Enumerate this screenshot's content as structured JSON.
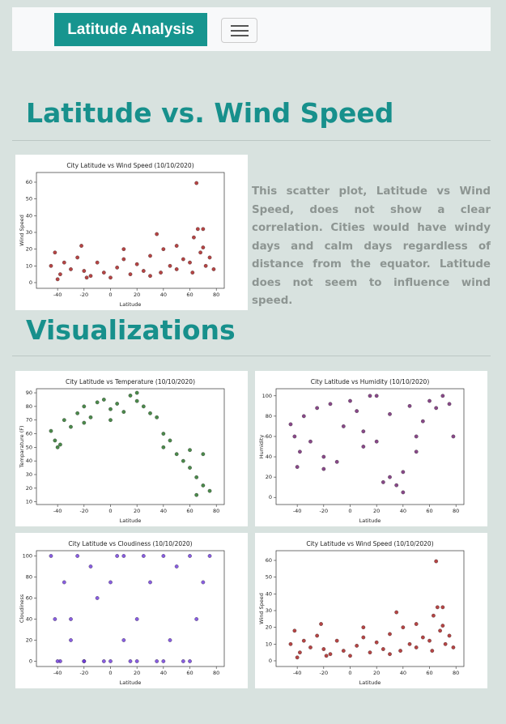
{
  "navbar": {
    "brand": "Latitude Analysis"
  },
  "main": {
    "heading": "Latitude vs. Wind Speed",
    "description": "This scatter plot, Latitude vs Wind Speed, does not show a clear correlation. Cities would have windy days and calm days regardless of distance from the equator. Latitude does not seem to influence wind speed."
  },
  "visualizations": {
    "heading": "Visualizations"
  },
  "chart_data": [
    {
      "type": "scatter",
      "title": "City Latitude vs Wind Speed (10/10/2020)",
      "x_label": "Latitude",
      "y_label": "Wind Speed",
      "color": "#a31515",
      "xlim": [
        -56,
        86
      ],
      "xticks": [
        -40,
        -20,
        0,
        20,
        40,
        60,
        80
      ],
      "ylim": [
        -3.4,
        65.8
      ],
      "yticks": [
        0,
        10,
        20,
        30,
        40,
        50,
        60
      ],
      "x": [
        -45,
        -42,
        -38,
        -35,
        -30,
        -25,
        -22,
        -20,
        -15,
        -10,
        -5,
        0,
        5,
        10,
        15,
        20,
        25,
        30,
        35,
        38,
        40,
        45,
        50,
        55,
        60,
        63,
        65,
        66,
        68,
        70,
        72,
        75,
        78,
        -40,
        -18,
        10,
        30,
        50,
        62,
        70
      ],
      "y": [
        10,
        18,
        5,
        12,
        8,
        15,
        22,
        7,
        4,
        12,
        6,
        3,
        9,
        14,
        5,
        11,
        7,
        16,
        29,
        6,
        20,
        10,
        8,
        14,
        12,
        27,
        59.5,
        32,
        18,
        21,
        10,
        15,
        8,
        2,
        3,
        20,
        4,
        22,
        6,
        32
      ]
    },
    {
      "type": "scatter",
      "title": "City Latitude vs Temperature (10/10/2020)",
      "x_label": "Latitude",
      "y_label": "Temparature (F)",
      "color": "#1e6b1e",
      "xlim": [
        -56,
        86
      ],
      "xticks": [
        -40,
        -20,
        0,
        20,
        40,
        60,
        80
      ],
      "ylim": [
        8,
        93
      ],
      "yticks": [
        10,
        20,
        30,
        40,
        50,
        60,
        70,
        80,
        90
      ],
      "x": [
        -45,
        -42,
        -38,
        -35,
        -30,
        -25,
        -20,
        -15,
        -10,
        -5,
        0,
        5,
        10,
        15,
        20,
        25,
        30,
        35,
        40,
        45,
        50,
        55,
        60,
        65,
        70,
        75,
        -40,
        -20,
        0,
        20,
        40,
        60,
        65,
        70
      ],
      "y": [
        62,
        55,
        52,
        70,
        65,
        75,
        80,
        72,
        83,
        85,
        78,
        82,
        76,
        88,
        84,
        80,
        75,
        72,
        60,
        55,
        45,
        40,
        35,
        28,
        22,
        18,
        50,
        68,
        70,
        90,
        50,
        48,
        15,
        45
      ]
    },
    {
      "type": "scatter",
      "title": "City Latitude vs Humidity (10/10/2020)",
      "x_label": "Latitude",
      "y_label": "Humidity",
      "color": "#6a1a6a",
      "xlim": [
        -56,
        86
      ],
      "xticks": [
        -40,
        -20,
        0,
        20,
        40,
        60,
        80
      ],
      "ylim": [
        -7,
        107
      ],
      "yticks": [
        0,
        20,
        40,
        60,
        80,
        100
      ],
      "x": [
        -45,
        -42,
        -38,
        -35,
        -30,
        -25,
        -20,
        -15,
        -10,
        -5,
        0,
        5,
        10,
        15,
        20,
        25,
        30,
        35,
        40,
        45,
        50,
        55,
        60,
        65,
        70,
        75,
        -40,
        -20,
        10,
        20,
        30,
        40,
        50,
        78
      ],
      "y": [
        72,
        60,
        45,
        80,
        55,
        88,
        40,
        92,
        35,
        70,
        95,
        85,
        65,
        100,
        55,
        15,
        82,
        12,
        25,
        90,
        60,
        75,
        95,
        88,
        100,
        92,
        30,
        28,
        50,
        100,
        20,
        5,
        45,
        60
      ]
    },
    {
      "type": "scatter",
      "title": "City Latitude vs Cloudiness (10/10/2020)",
      "x_label": "Latitude",
      "y_label": "Cloudiness",
      "color": "#6a35d8",
      "xlim": [
        -56,
        86
      ],
      "xticks": [
        -40,
        -20,
        0,
        20,
        40,
        60,
        80
      ],
      "ylim": [
        -5,
        105
      ],
      "yticks": [
        0,
        20,
        40,
        60,
        80,
        100
      ],
      "x": [
        -45,
        -42,
        -38,
        -35,
        -30,
        -25,
        -20,
        -15,
        -10,
        -5,
        0,
        5,
        10,
        15,
        20,
        25,
        30,
        35,
        40,
        45,
        50,
        55,
        60,
        65,
        70,
        75,
        -40,
        -20,
        0,
        20,
        40,
        60,
        -30,
        10
      ],
      "y": [
        100,
        40,
        0,
        75,
        20,
        100,
        0,
        90,
        60,
        0,
        75,
        100,
        20,
        0,
        40,
        100,
        75,
        0,
        100,
        20,
        90,
        0,
        100,
        40,
        75,
        100,
        0,
        0,
        0,
        0,
        0,
        0,
        40,
        100
      ]
    },
    {
      "type": "scatter",
      "title": "City Latitude vs Wind Speed (10/10/2020)",
      "x_label": "Latitude",
      "y_label": "Wind Speed",
      "color": "#a31515",
      "xlim": [
        -56,
        86
      ],
      "xticks": [
        -40,
        -20,
        0,
        20,
        40,
        60,
        80
      ],
      "ylim": [
        -3.4,
        65.8
      ],
      "yticks": [
        0,
        10,
        20,
        30,
        40,
        50,
        60
      ],
      "x": [
        -45,
        -42,
        -38,
        -35,
        -30,
        -25,
        -22,
        -20,
        -15,
        -10,
        -5,
        0,
        5,
        10,
        15,
        20,
        25,
        30,
        35,
        38,
        40,
        45,
        50,
        55,
        60,
        63,
        65,
        66,
        68,
        70,
        72,
        75,
        78,
        -40,
        -18,
        10,
        30,
        50,
        62,
        70
      ],
      "y": [
        10,
        18,
        5,
        12,
        8,
        15,
        22,
        7,
        4,
        12,
        6,
        3,
        9,
        14,
        5,
        11,
        7,
        16,
        29,
        6,
        20,
        10,
        8,
        14,
        12,
        27,
        59.5,
        32,
        18,
        21,
        10,
        15,
        8,
        2,
        3,
        20,
        4,
        22,
        6,
        32
      ]
    }
  ]
}
